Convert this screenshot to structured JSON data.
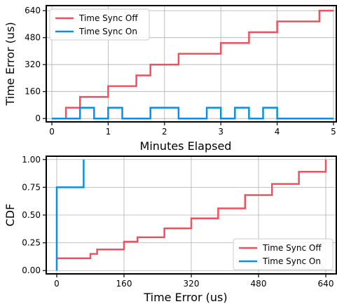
{
  "colors": {
    "sync_off": "#f0515f",
    "sync_on": "#0d8fe0",
    "grid": "#b0b0b0"
  },
  "chart_data": [
    {
      "type": "line",
      "xlabel": "Minutes Elapsed",
      "ylabel": "Time Error (us)",
      "xlim": [
        -0.1,
        5.05
      ],
      "ylim": [
        -20,
        670
      ],
      "xticks": [
        0,
        1,
        2,
        3,
        4,
        5
      ],
      "yticks": [
        0,
        160,
        320,
        480,
        640
      ],
      "grid": true,
      "legend_position": "upper-left",
      "series": [
        {
          "name": "Time Sync Off",
          "color": "#f0515f",
          "step": true,
          "x": [
            0.25,
            0.5,
            1.0,
            1.5,
            1.75,
            2.25,
            3.0,
            3.5,
            4.0,
            4.75,
            5.0
          ],
          "y": [
            64,
            128,
            192,
            256,
            320,
            384,
            448,
            512,
            576,
            640,
            640
          ]
        },
        {
          "name": "Time Sync On",
          "color": "#0d8fe0",
          "step": true,
          "x": [
            0,
            0.5,
            0.75,
            1.0,
            1.25,
            1.75,
            2.25,
            2.75,
            3.0,
            3.25,
            3.5,
            3.75,
            4.0,
            5.0
          ],
          "y": [
            0,
            64,
            0,
            64,
            0,
            64,
            0,
            64,
            0,
            64,
            0,
            64,
            0,
            0
          ]
        }
      ]
    },
    {
      "type": "line",
      "xlabel": "Time Error (us)",
      "ylabel": "CDF",
      "xlim": [
        -25,
        665
      ],
      "ylim": [
        -0.03,
        1.03
      ],
      "xticks": [
        0,
        160,
        320,
        480,
        640
      ],
      "yticks": [
        0.0,
        0.25,
        0.5,
        0.75,
        1.0
      ],
      "ytick_labels": [
        "0.00",
        "0.25",
        "0.50",
        "0.75",
        "1.00"
      ],
      "grid": true,
      "legend_position": "lower-right",
      "series": [
        {
          "name": "Time Sync Off",
          "color": "#f0515f",
          "step": true,
          "x": [
            0,
            64,
            80,
            96,
            128,
            160,
            192,
            224,
            256,
            320,
            384,
            448,
            512,
            576,
            640
          ],
          "y": [
            0.11,
            0.11,
            0.15,
            0.19,
            0.19,
            0.26,
            0.3,
            0.3,
            0.38,
            0.47,
            0.56,
            0.68,
            0.78,
            0.89,
            1.0
          ]
        },
        {
          "name": "Time Sync On",
          "color": "#0d8fe0",
          "step": true,
          "x": [
            0,
            64
          ],
          "y": [
            0.75,
            1.0
          ],
          "start_from_zero": true
        }
      ]
    }
  ]
}
